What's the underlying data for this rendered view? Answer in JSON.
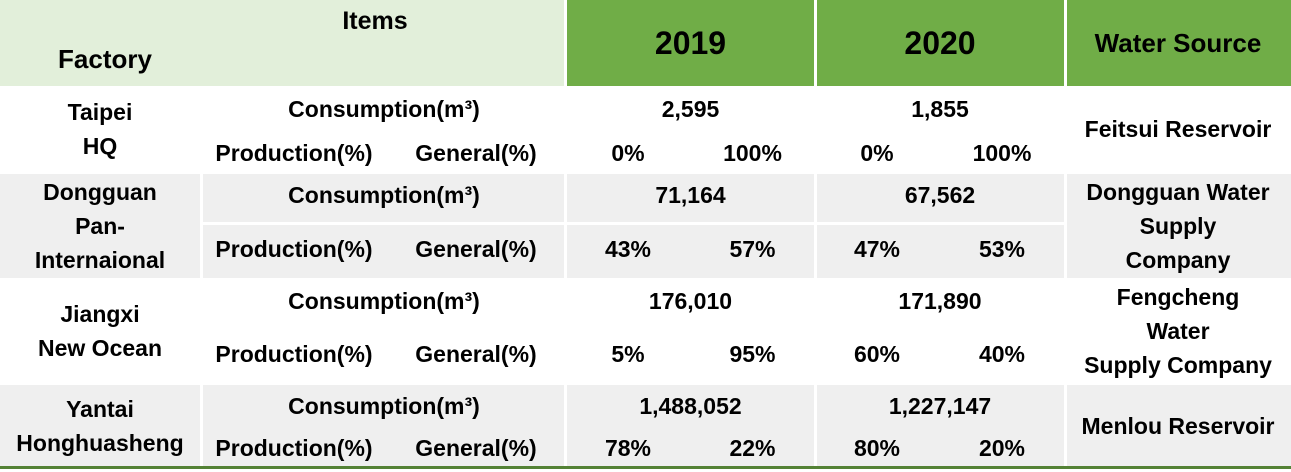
{
  "header": {
    "items_label": "Items",
    "factory_label": "Factory",
    "year_2019": "2019",
    "year_2020": "2020",
    "water_source_label": "Water Source"
  },
  "rows": [
    {
      "factory": [
        "Taipei",
        "HQ"
      ],
      "consumption_label": "Consumption(m³)",
      "production_label": "Production(%)",
      "general_label": "General(%)",
      "c2019": "2,595",
      "c2020": "1,855",
      "p2019": "0%",
      "g2019": "100%",
      "p2020": "0%",
      "g2020": "100%",
      "source": [
        "Feitsui Reservoir"
      ]
    },
    {
      "factory": [
        "Dongguan",
        "Pan-",
        "Internaional"
      ],
      "consumption_label": "Consumption(m³)",
      "production_label": "Production(%)",
      "general_label": "General(%)",
      "c2019": "71,164",
      "c2020": "67,562",
      "p2019": "43%",
      "g2019": "57%",
      "p2020": "47%",
      "g2020": "53%",
      "source": [
        "Dongguan Water",
        "Supply",
        "Company"
      ]
    },
    {
      "factory": [
        "Jiangxi",
        "New Ocean"
      ],
      "consumption_label": "Consumption(m³)",
      "production_label": "Production(%)",
      "general_label": "General(%)",
      "c2019": "176,010",
      "c2020": "171,890",
      "p2019": "5%",
      "g2019": "95%",
      "p2020": "60%",
      "g2020": "40%",
      "source": [
        "Fengcheng",
        "Water",
        "Supply Company"
      ]
    },
    {
      "factory": [
        "Yantai",
        "Honghuasheng"
      ],
      "consumption_label": "Consumption(m³)",
      "production_label": "Production(%)",
      "general_label": "General(%)",
      "c2019": "1,488,052",
      "c2020": "1,227,147",
      "p2019": "78%",
      "g2019": "22%",
      "p2020": "80%",
      "g2020": "20%",
      "source": [
        "Menlou Reservoir"
      ]
    }
  ]
}
